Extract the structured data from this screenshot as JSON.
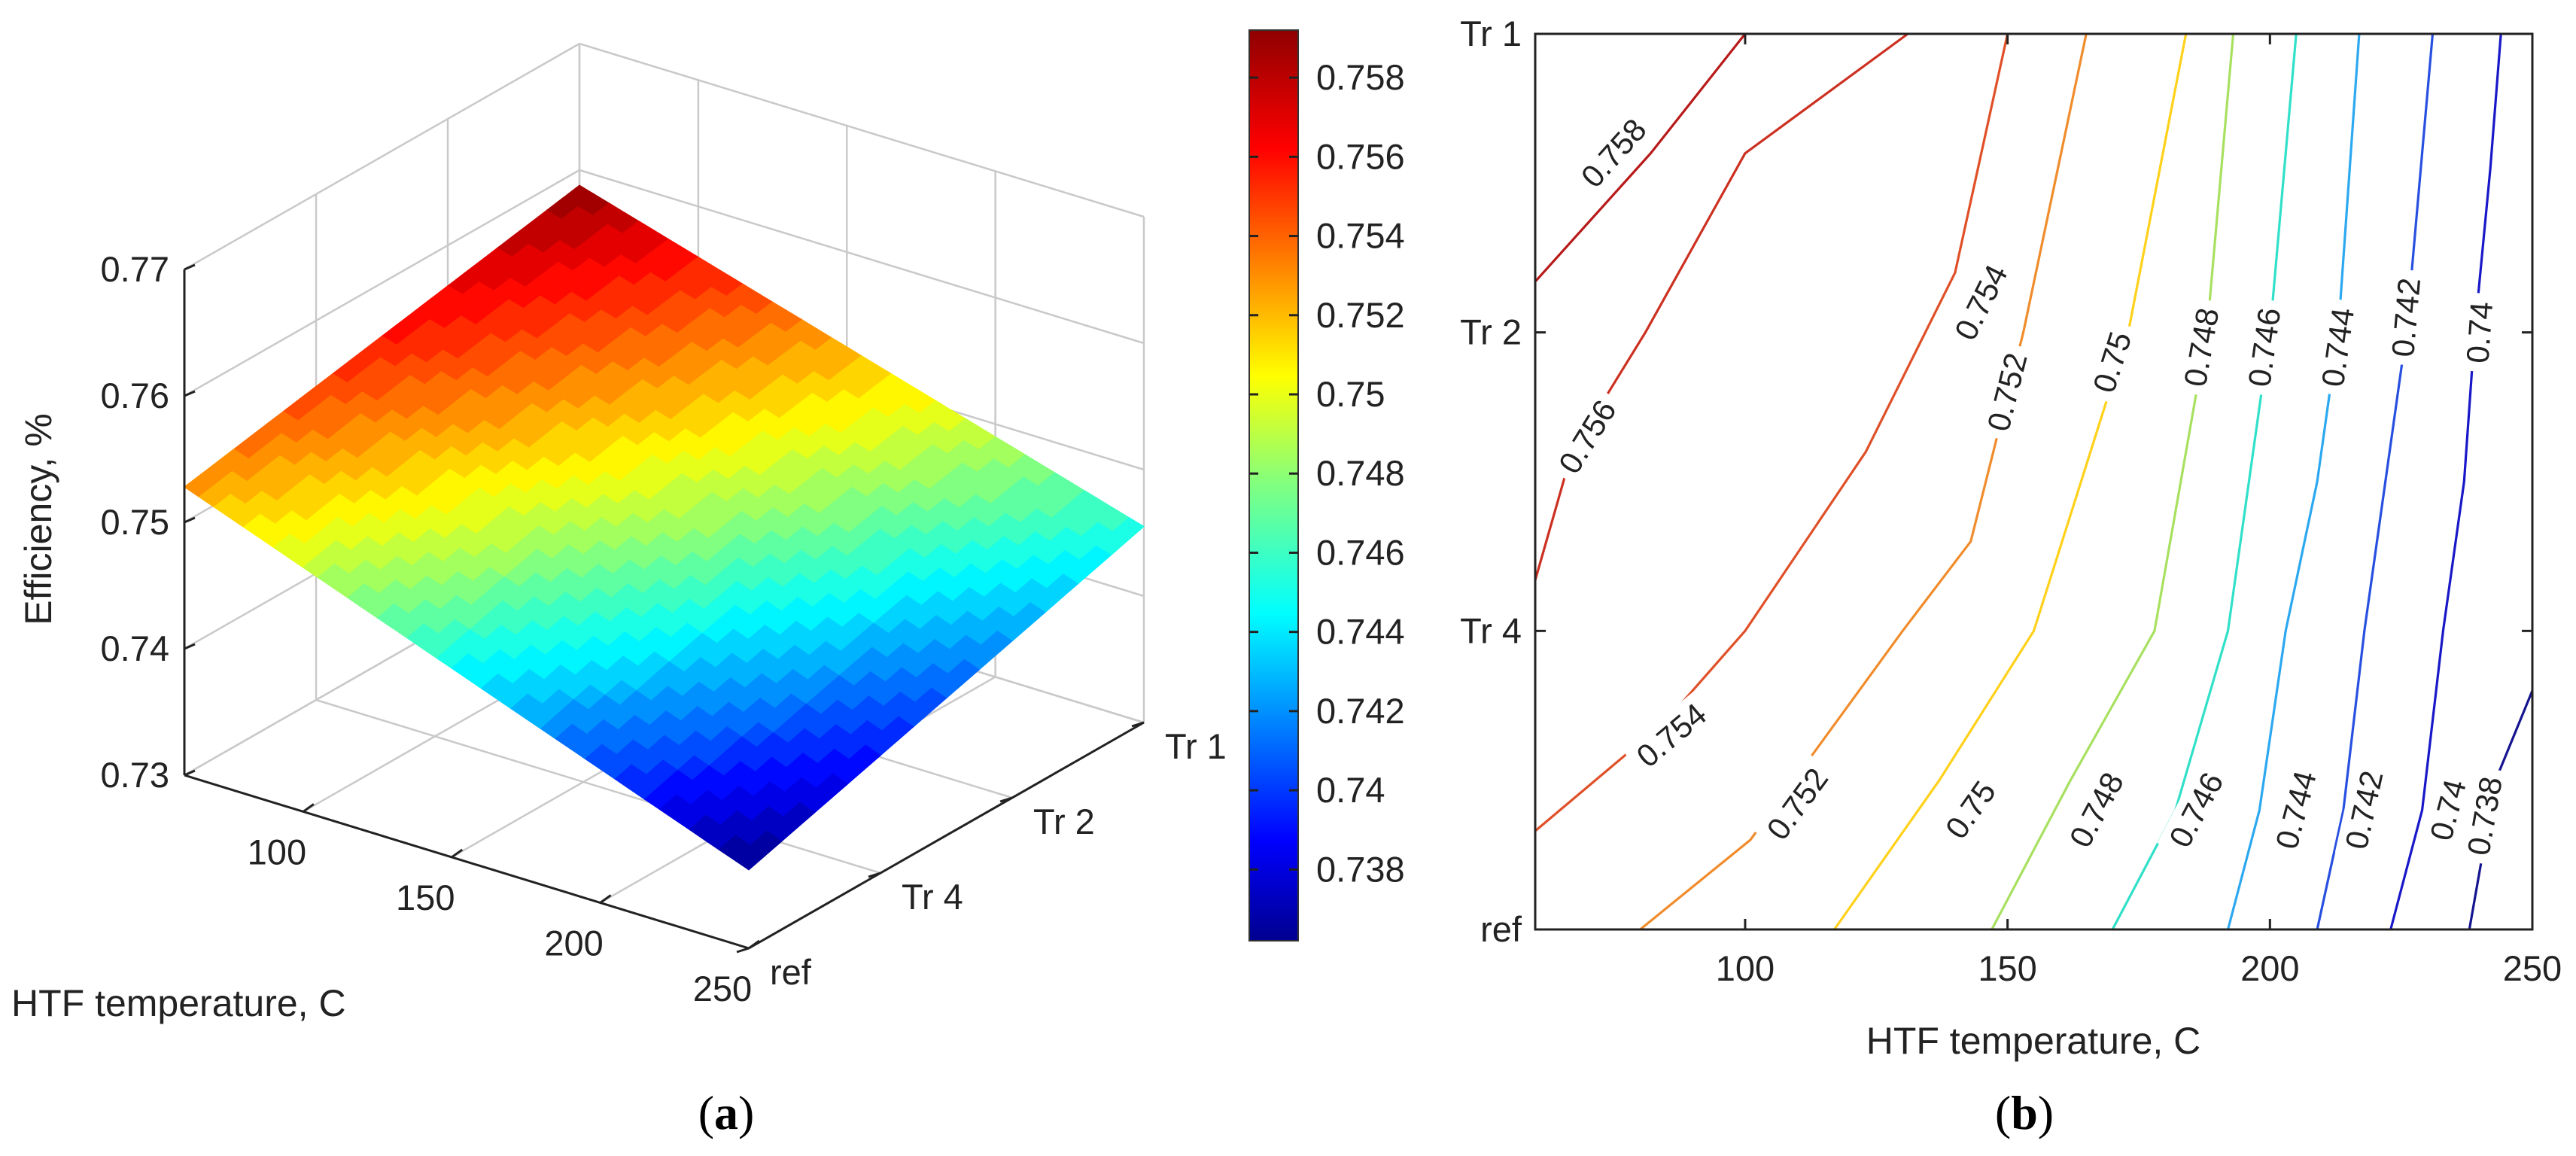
{
  "panel_a": {
    "label_open": "(",
    "label_letter": "a",
    "label_close": ")"
  },
  "panel_b": {
    "label_open": "(",
    "label_letter": "b",
    "label_close": ")"
  },
  "chart_data": [
    {
      "type": "surface",
      "title": "",
      "xlabel": "HTF temperature, C",
      "ylabel": "Efficiency, %",
      "x_ticks": [
        "100",
        "150",
        "200",
        "250"
      ],
      "y_categories": [
        "ref",
        "Tr 4",
        "Tr 2",
        "Tr 1"
      ],
      "z_ticks": [
        "0.73",
        "0.74",
        "0.75",
        "0.76",
        "0.77"
      ],
      "zlim": [
        0.73,
        0.77
      ],
      "x": [
        60,
        100,
        150,
        200,
        250
      ],
      "corner_values": {
        "x60_Tr1": 0.7588,
        "x60_ref": 0.7528,
        "x250_Tr1": 0.7455,
        "x250_ref": 0.7362
      },
      "colorbar": {
        "ticks": [
          "0.738",
          "0.74",
          "0.742",
          "0.744",
          "0.746",
          "0.748",
          "0.75",
          "0.752",
          "0.754",
          "0.756",
          "0.758"
        ],
        "range": [
          0.7362,
          0.7592
        ],
        "colormap": "jet"
      }
    },
    {
      "type": "contour",
      "xlabel": "HTF temperature, C",
      "ylabel": "",
      "x_ticks": [
        "100",
        "150",
        "200",
        "250"
      ],
      "y_categories": [
        "ref",
        "Tr 4",
        "Tr 2",
        "Tr 1"
      ],
      "xlim": [
        60,
        250
      ],
      "contour_levels": [
        {
          "level": "0.758",
          "color": "#b81a1a",
          "points": [
            [
              60,
              2.17
            ],
            [
              82,
              2.6
            ],
            [
              100,
              3.0
            ]
          ],
          "labels": [
            [
              75,
              2.6
            ]
          ]
        },
        {
          "level": "0.756",
          "color": "#cc3020",
          "points": [
            [
              60,
              1.17
            ],
            [
              67,
              1.6
            ],
            [
              81,
              2.0
            ],
            [
              100,
              2.6
            ],
            [
              131,
              3.0
            ]
          ],
          "labels": [
            [
              70,
              1.65
            ]
          ]
        },
        {
          "level": "0.754",
          "color": "#e05028",
          "points": [
            [
              60,
              0.33
            ],
            [
              85,
              0.7
            ],
            [
              100,
              1.0
            ],
            [
              123,
              1.6
            ],
            [
              140,
              2.2
            ],
            [
              150,
              3.0
            ]
          ],
          "labels": [
            [
              145,
              2.1
            ],
            [
              86,
              0.65
            ]
          ]
        },
        {
          "level": "0.752",
          "color": "#f08c2c",
          "points": [
            [
              80,
              0.0
            ],
            [
              101,
              0.3
            ],
            [
              130,
              1.0
            ],
            [
              143,
              1.3
            ],
            [
              153,
              2.0
            ],
            [
              165,
              3.0
            ]
          ],
          "labels": [
            [
              150,
              1.8
            ],
            [
              110,
              0.42
            ]
          ]
        },
        {
          "level": "0.75",
          "color": "#ffd11a",
          "points": [
            [
              117,
              0.0
            ],
            [
              137,
              0.5
            ],
            [
              155,
              1.0
            ],
            [
              164,
              1.5
            ],
            [
              173,
              2.0
            ],
            [
              184,
              3.0
            ]
          ],
          "labels": [
            [
              170,
              1.9
            ],
            [
              143,
              0.4
            ]
          ]
        },
        {
          "level": "0.748",
          "color": "#a8e060",
          "points": [
            [
              147,
              0.0
            ],
            [
              162,
              0.5
            ],
            [
              178,
              1.0
            ],
            [
              183,
              1.5
            ],
            [
              188,
              2.0
            ],
            [
              193,
              3.0
            ]
          ],
          "labels": [
            [
              187,
              1.95
            ],
            [
              167,
              0.4
            ]
          ]
        },
        {
          "level": "0.746",
          "color": "#30e0c8",
          "points": [
            [
              170,
              0.0
            ],
            [
              182,
              0.4
            ],
            [
              192,
              1.0
            ],
            [
              196,
              1.5
            ],
            [
              200,
              2.0
            ],
            [
              205,
              3.0
            ]
          ],
          "labels": [
            [
              199,
              1.95
            ],
            [
              186,
              0.4
            ]
          ]
        },
        {
          "level": "0.744",
          "color": "#2ca8f0",
          "points": [
            [
              192,
              0.0
            ],
            [
              198,
              0.4
            ],
            [
              203,
              1.0
            ],
            [
              209,
              1.5
            ],
            [
              213,
              2.0
            ],
            [
              217,
              3.0
            ]
          ],
          "labels": [
            [
              213,
              1.95
            ],
            [
              205,
              0.4
            ]
          ]
        },
        {
          "level": "0.742",
          "color": "#2850e0",
          "points": [
            [
              209,
              0.0
            ],
            [
              214,
              0.4
            ],
            [
              218,
              1.0
            ],
            [
              222,
              1.5
            ],
            [
              226,
              2.0
            ],
            [
              231,
              3.0
            ]
          ],
          "labels": [
            [
              226,
              2.05
            ],
            [
              218,
              0.4
            ]
          ]
        },
        {
          "level": "0.74",
          "color": "#1818c8",
          "points": [
            [
              223,
              0.0
            ],
            [
              229,
              0.4
            ],
            [
              233,
              1.0
            ],
            [
              237,
              1.5
            ],
            [
              239,
              2.0
            ],
            [
              242,
              2.55
            ],
            [
              244,
              3.0
            ]
          ],
          "labels": [
            [
              240,
              2.0
            ],
            [
              234,
              0.4
            ]
          ]
        },
        {
          "level": "0.738",
          "color": "#141490",
          "points": [
            [
              238,
              0.0
            ],
            [
              243,
              0.5
            ],
            [
              250,
              0.8
            ]
          ],
          "labels": [
            [
              241,
              0.38
            ]
          ]
        }
      ]
    }
  ]
}
